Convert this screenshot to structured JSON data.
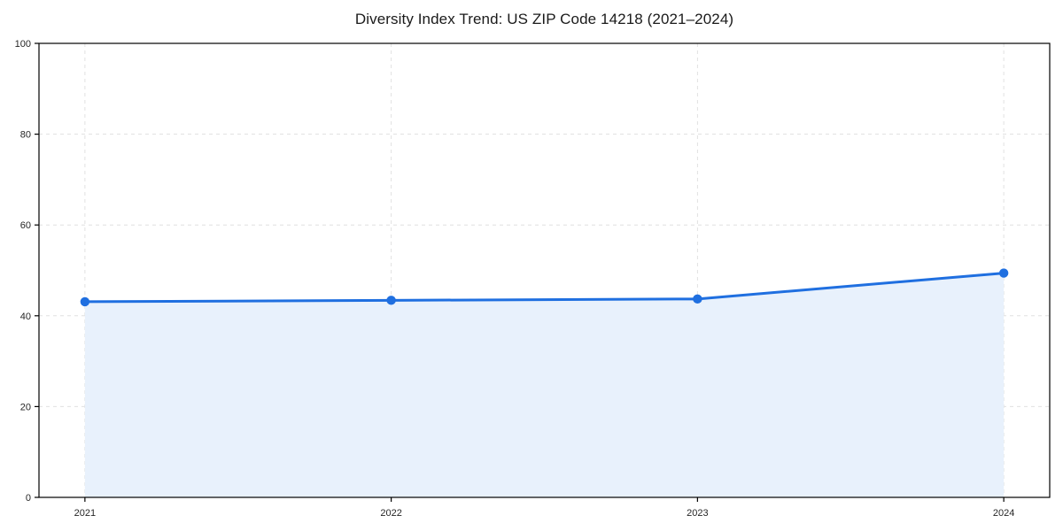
{
  "chart_data": {
    "type": "area",
    "title": "Diversity Index Trend: US ZIP Code 14218 (2021–2024)",
    "categories": [
      "2021",
      "2022",
      "2023",
      "2024"
    ],
    "series": [
      {
        "name": "Diversity Index",
        "values": [
          43.1,
          43.4,
          43.7,
          49.4
        ]
      }
    ],
    "xlabel": "",
    "ylabel": "",
    "ylim": [
      0,
      100
    ],
    "yticks": [
      0,
      20,
      40,
      60,
      80,
      100
    ],
    "grid": true,
    "grid_style": "dashed",
    "legend_position": "none",
    "colors": {
      "line": "#1f6fe0",
      "marker": "#1f6fe0",
      "fill": "#e8f1fc",
      "grid": "#e0e0e0",
      "spine": "#000000",
      "tick_label": "#262626",
      "title": "#1a1a1a",
      "background": "#ffffff"
    }
  }
}
